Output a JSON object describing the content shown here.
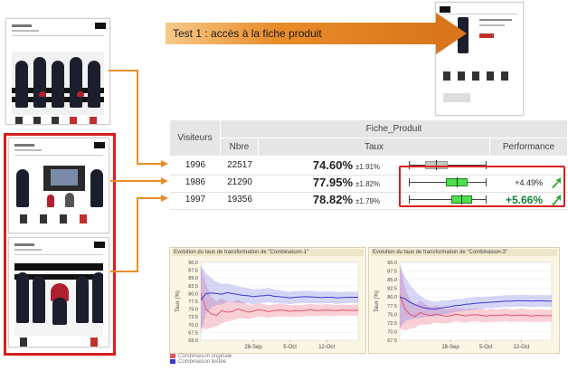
{
  "banner": {
    "label": "Test 1 : accès à la fiche produit"
  },
  "table": {
    "headers": {
      "visitors": "Visiteurs",
      "group": "Fiche_Produit",
      "nbre": "Nbre",
      "taux": "Taux",
      "performance": "Performance"
    },
    "rows": [
      {
        "visitors": "1996",
        "nbre": "22517",
        "rate": "74.60%",
        "ci": "±1.91%",
        "perf": "",
        "bar": {
          "center": 74.6,
          "ci": 1.91
        },
        "highlight": false
      },
      {
        "visitors": "1986",
        "nbre": "21290",
        "rate": "77.95%",
        "ci": "±1.82%",
        "perf": "+4.49%",
        "bar": {
          "center": 77.95,
          "ci": 1.82
        },
        "highlight": true
      },
      {
        "visitors": "1997",
        "nbre": "19356",
        "rate": "78.82%",
        "ci": "±1.79%",
        "perf": "+5.66%",
        "bar": {
          "center": 78.82,
          "ci": 1.79
        },
        "highlight": true
      }
    ]
  },
  "colors": {
    "accent_red": "#d81e1e",
    "arrow_orange": "#e98d2a",
    "bar_green": "#4de04d",
    "original_series": "#e0566a",
    "tested_series": "#3a3ad6"
  },
  "chart_data": [
    {
      "type": "line",
      "title": "Evolution du taux de transformation de \"Combinaison-1\"",
      "ylabel": "Taux (%)",
      "ylim": [
        65.0,
        90.0
      ],
      "yticks": [
        "90.0",
        "87.5",
        "85.0",
        "82.5",
        "80.0",
        "77.5",
        "75.0",
        "72.5",
        "70.0",
        "67.5",
        "65.0"
      ],
      "xticks": [
        "28-Sep",
        "5-Oct",
        "12-Oct"
      ],
      "x": [
        0,
        1,
        2,
        3,
        4,
        5,
        6,
        7,
        8,
        9,
        10,
        11,
        12,
        13,
        14,
        15,
        16,
        17,
        18,
        19,
        20,
        21,
        22,
        23,
        24,
        25,
        26,
        27,
        28,
        29,
        30
      ],
      "series": [
        {
          "name": "Combinaison originale",
          "values": [
            80,
            75,
            73.5,
            73,
            74.5,
            74,
            74.2,
            75,
            74.6,
            74,
            74.3,
            74.8,
            74.5,
            74.2,
            74.5,
            74.7,
            74.6,
            74.3,
            74.5,
            74.4,
            74.6,
            74.8,
            74.5,
            74.6,
            74.7,
            74.6,
            74.5,
            74.7,
            74.6,
            74.6,
            74.6
          ],
          "lower": [
            69,
            68.5,
            69,
            69.5,
            70.5,
            71,
            71.3,
            72,
            72,
            71.8,
            72.2,
            72.6,
            72.5,
            72.3,
            72.5,
            72.7,
            72.7,
            72.5,
            72.6,
            72.6,
            72.8,
            72.9,
            72.7,
            72.8,
            72.9,
            72.8,
            72.8,
            72.9,
            72.9,
            72.9,
            72.9
          ],
          "upper": [
            89,
            83,
            79,
            77.5,
            78.5,
            77.5,
            77.2,
            78,
            77.3,
            76.4,
            76.5,
            77,
            76.6,
            76.2,
            76.5,
            76.7,
            76.6,
            76.2,
            76.4,
            76.3,
            76.5,
            76.7,
            76.4,
            76.5,
            76.6,
            76.5,
            76.3,
            76.5,
            76.4,
            76.4,
            76.4
          ]
        },
        {
          "name": "Combinaison testée",
          "values": [
            78,
            80,
            80.2,
            80,
            79.8,
            80.3,
            80,
            79.7,
            79.4,
            79.3,
            79,
            79.2,
            79.3,
            79.5,
            79.1,
            79,
            78.8,
            78.6,
            78.8,
            78.9,
            79,
            78.9,
            78.8,
            78.7,
            78.8,
            78.8,
            78.6,
            78.7,
            78.8,
            78.8,
            78.8
          ],
          "lower": [
            67,
            73.5,
            75.5,
            76.3,
            76.5,
            77.3,
            77.2,
            77,
            76.8,
            76.8,
            76.6,
            76.9,
            77,
            77.2,
            76.9,
            76.9,
            76.7,
            76.6,
            76.8,
            76.9,
            77,
            76.9,
            76.9,
            76.8,
            76.9,
            76.9,
            76.7,
            76.8,
            76.9,
            77,
            77
          ],
          "upper": [
            89,
            86.5,
            85,
            83.8,
            83,
            83.3,
            82.8,
            82.4,
            82,
            81.8,
            81.4,
            81.5,
            81.6,
            81.8,
            81.3,
            81.1,
            80.9,
            80.6,
            80.8,
            80.9,
            81,
            80.9,
            80.7,
            80.6,
            80.7,
            80.7,
            80.5,
            80.6,
            80.7,
            80.6,
            80.6
          ]
        }
      ]
    },
    {
      "type": "line",
      "title": "Evolution du taux de transformation de \"Combinaison-3\"",
      "ylabel": "Taux (%)",
      "ylim": [
        67.5,
        90.0
      ],
      "yticks": [
        "90.0",
        "87.5",
        "85.0",
        "82.5",
        "80.0",
        "77.5",
        "75.0",
        "72.5",
        "70.0",
        "67.5"
      ],
      "xticks": [
        "28-Sep",
        "5-Oct",
        "12-Oct"
      ],
      "x": [
        0,
        1,
        2,
        3,
        4,
        5,
        6,
        7,
        8,
        9,
        10,
        11,
        12,
        13,
        14,
        15,
        16,
        17,
        18,
        19,
        20,
        21,
        22,
        23,
        24,
        25,
        26,
        27,
        28,
        29,
        30
      ],
      "series": [
        {
          "name": "Combinaison originale",
          "values": [
            80.5,
            76.5,
            75,
            74.3,
            75.5,
            75,
            74.6,
            75,
            74.8,
            74.4,
            74.6,
            75,
            74.8,
            74.5,
            74.8,
            74.9,
            74.7,
            74.5,
            74.7,
            74.6,
            74.7,
            74.9,
            74.6,
            74.7,
            74.8,
            74.7,
            74.5,
            74.7,
            74.6,
            74.6,
            74.6
          ],
          "lower": [
            71,
            70.3,
            70.8,
            71,
            72,
            72,
            72.1,
            72.6,
            72.5,
            72.3,
            72.6,
            73,
            72.8,
            72.6,
            72.9,
            73,
            72.8,
            72.7,
            72.8,
            72.8,
            72.9,
            73,
            72.8,
            72.9,
            72.9,
            72.9,
            72.8,
            72.9,
            72.8,
            72.9,
            72.9
          ],
          "upper": [
            90,
            82.7,
            79.2,
            77.6,
            79,
            78,
            77.1,
            77.4,
            77.1,
            76.5,
            76.6,
            77,
            76.8,
            76.4,
            76.7,
            76.8,
            76.6,
            76.3,
            76.6,
            76.4,
            76.5,
            76.8,
            76.4,
            76.5,
            76.7,
            76.5,
            76.2,
            76.5,
            76.4,
            76.3,
            76.3
          ]
        },
        {
          "name": "Combinaison testée",
          "values": [
            80,
            79.5,
            78.5,
            77.8,
            77.2,
            76.8,
            76.6,
            76.5,
            76.8,
            77,
            77.2,
            77.5,
            77.6,
            77.9,
            78,
            78.2,
            78.3,
            78.4,
            78.5,
            78.6,
            78.7,
            78.8,
            78.8,
            78.9,
            78.9,
            78.9,
            78.8,
            78.9,
            78.9,
            78.8,
            78.8
          ],
          "lower": [
            71,
            73,
            73.5,
            73.8,
            74,
            74.2,
            74.3,
            74.4,
            74.7,
            75,
            75.3,
            75.6,
            75.8,
            76.1,
            76.2,
            76.4,
            76.5,
            76.7,
            76.8,
            76.9,
            77,
            77.1,
            77.1,
            77.2,
            77.2,
            77.2,
            77.1,
            77.2,
            77.2,
            77.1,
            77.1
          ],
          "upper": [
            89,
            86,
            83.5,
            81.8,
            80.4,
            79.4,
            78.9,
            78.6,
            78.9,
            79,
            79.1,
            79.4,
            79.4,
            79.7,
            79.8,
            80,
            80.1,
            80.1,
            80.2,
            80.3,
            80.4,
            80.5,
            80.5,
            80.6,
            80.6,
            80.6,
            80.5,
            80.6,
            80.6,
            80.5,
            80.5
          ]
        }
      ]
    }
  ]
}
